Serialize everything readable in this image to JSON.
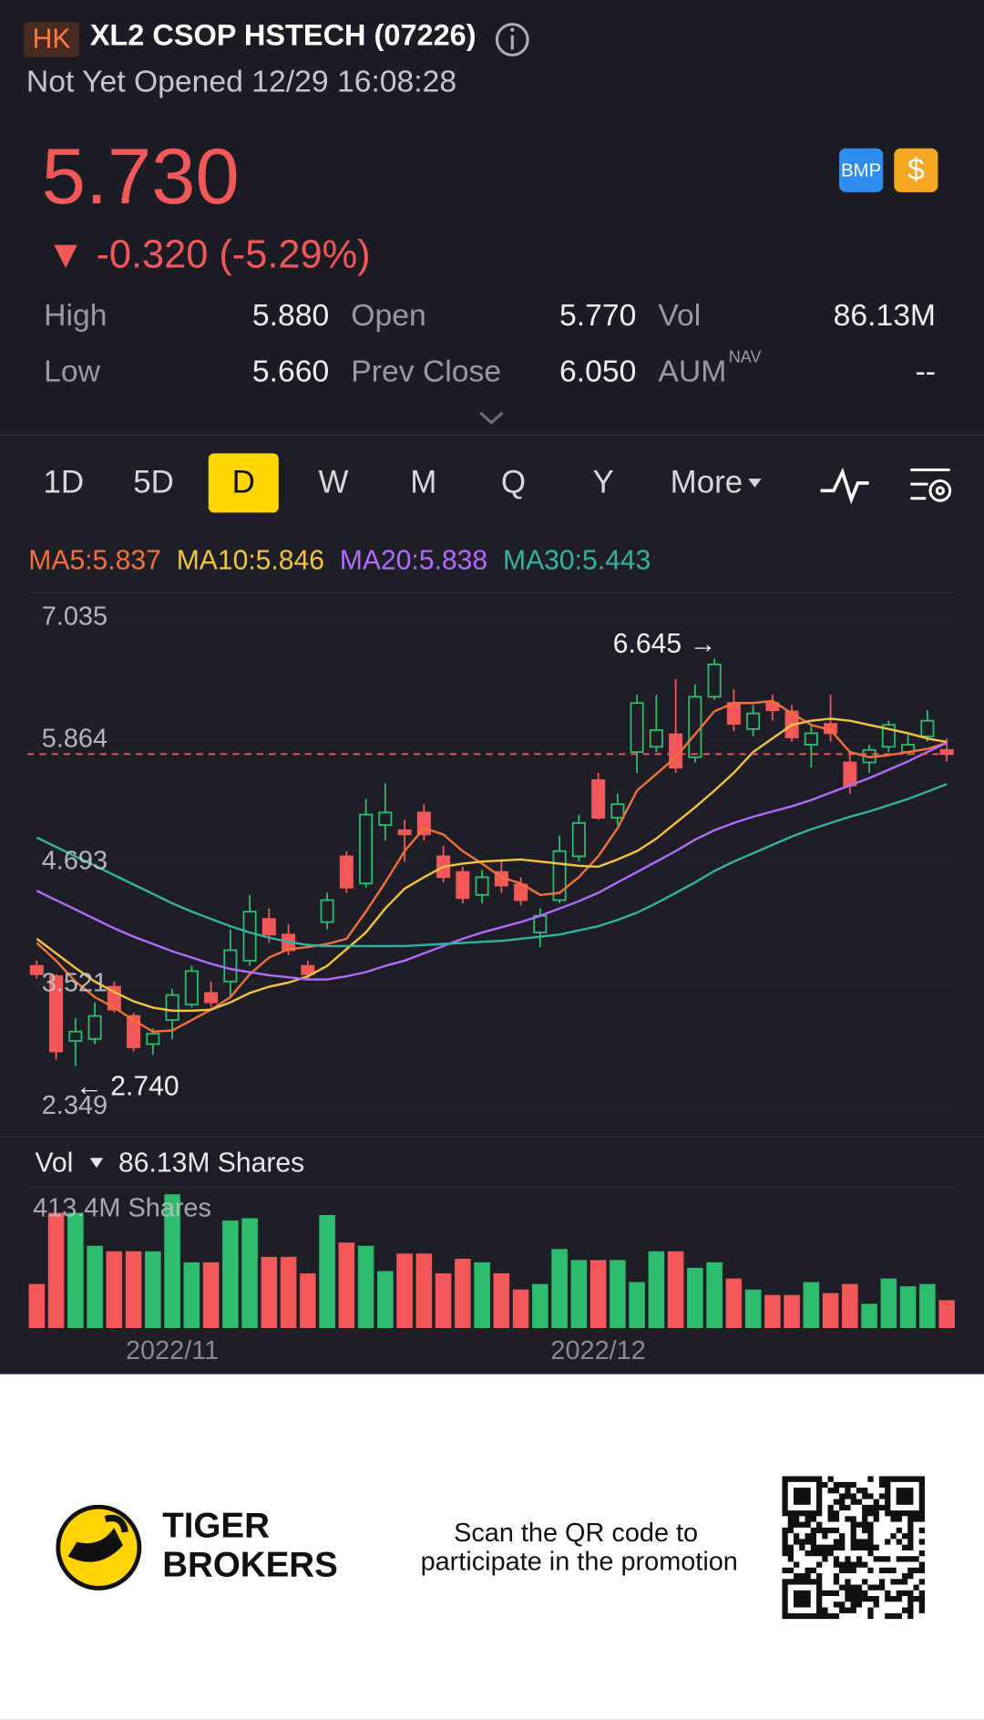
{
  "header": {
    "exchange": "HK",
    "title": "XL2 CSOP HSTECH (07226)",
    "status": "Not Yet Opened 12/29 16:08:28",
    "price": "5.730",
    "change": "▼ -0.320 (-5.29%)",
    "badges": [
      "BMP",
      "$"
    ]
  },
  "stats": [
    {
      "label": "High",
      "value": "5.880"
    },
    {
      "label": "Open",
      "value": "5.770"
    },
    {
      "label": "Vol",
      "value": "86.13M"
    },
    {
      "label": "Low",
      "value": "5.660"
    },
    {
      "label": "Prev Close",
      "value": "6.050"
    },
    {
      "label": "AUM",
      "sup": "NAV",
      "value": "--"
    }
  ],
  "tabs": [
    "1D",
    "5D",
    "D",
    "W",
    "M",
    "Q",
    "Y",
    "More"
  ],
  "selected_tab": "D",
  "chart_data": {
    "type": "candlestick",
    "categories": [
      null,
      null,
      null,
      null,
      null,
      null,
      null,
      "2022/11",
      null,
      null,
      null,
      null,
      null,
      null,
      null,
      null,
      null,
      null,
      null,
      null,
      null,
      null,
      null,
      null,
      null,
      null,
      null,
      null,
      null,
      "2022/12",
      null,
      null,
      null,
      null,
      null,
      null,
      null,
      null,
      null,
      null,
      null,
      null,
      null,
      null,
      null,
      null,
      null,
      null
    ],
    "ylim": [
      2.069,
      7.224
    ],
    "yticks": [
      7.035,
      5.864,
      4.693,
      3.521,
      2.349
    ],
    "up_color": "#2dbd6e",
    "down_color": "#f25858",
    "open": [
      3.7,
      3.6,
      2.98,
      3.0,
      3.5,
      3.22,
      2.95,
      3.18,
      3.33,
      3.44,
      3.55,
      3.75,
      4.15,
      4.0,
      3.7,
      4.12,
      4.75,
      4.49,
      5.05,
      5.0,
      5.17,
      4.75,
      4.6,
      4.38,
      4.6,
      4.48,
      4.02,
      4.33,
      4.75,
      5.48,
      5.12,
      5.75,
      5.8,
      5.92,
      5.7,
      6.28,
      6.22,
      5.97,
      6.22,
      6.14,
      5.82,
      6.02,
      5.65,
      5.65,
      5.8,
      5.75,
      5.9,
      5.77
    ],
    "high": [
      3.75,
      3.62,
      3.2,
      3.35,
      3.55,
      3.25,
      3.1,
      3.48,
      3.7,
      3.55,
      4.05,
      4.38,
      4.25,
      4.1,
      3.75,
      4.4,
      4.8,
      5.3,
      5.45,
      5.1,
      5.25,
      4.85,
      4.65,
      4.62,
      4.7,
      4.55,
      4.25,
      4.95,
      5.15,
      5.55,
      5.35,
      6.3,
      6.3,
      6.45,
      6.4,
      6.645,
      6.35,
      6.2,
      6.3,
      6.2,
      6.0,
      6.3,
      5.75,
      5.82,
      6.05,
      5.92,
      6.15,
      5.88
    ],
    "low": [
      3.58,
      2.8,
      2.74,
      2.95,
      3.25,
      2.88,
      2.85,
      3.0,
      3.3,
      3.3,
      3.4,
      3.7,
      3.92,
      3.8,
      3.58,
      4.05,
      4.4,
      4.45,
      4.9,
      4.7,
      4.9,
      4.5,
      4.3,
      4.3,
      4.4,
      4.28,
      3.88,
      4.3,
      4.7,
      5.1,
      5.05,
      5.55,
      5.75,
      5.55,
      5.65,
      6.25,
      5.95,
      5.9,
      6.05,
      5.85,
      5.6,
      5.85,
      5.35,
      5.55,
      5.75,
      5.72,
      5.85,
      5.66
    ],
    "close": [
      3.62,
      2.88,
      3.07,
      3.22,
      3.28,
      2.92,
      3.05,
      3.42,
      3.65,
      3.35,
      3.85,
      4.22,
      4.0,
      3.85,
      3.62,
      4.33,
      4.45,
      5.15,
      5.17,
      4.96,
      4.96,
      4.55,
      4.35,
      4.55,
      4.47,
      4.33,
      4.18,
      4.8,
      5.07,
      5.12,
      5.25,
      6.22,
      5.96,
      5.6,
      6.28,
      6.59,
      6.02,
      6.12,
      6.15,
      5.89,
      5.93,
      5.93,
      5.43,
      5.77,
      6.01,
      5.82,
      6.05,
      5.73
    ],
    "series": [
      {
        "name": "MA5:5.837",
        "color": "#f2703c",
        "values": [
          3.92,
          3.75,
          3.55,
          3.4,
          3.3,
          3.18,
          3.07,
          3.08,
          3.18,
          3.28,
          3.4,
          3.62,
          3.78,
          3.86,
          3.88,
          3.91,
          3.96,
          4.22,
          4.5,
          4.8,
          5.02,
          4.96,
          4.8,
          4.68,
          4.55,
          4.49,
          4.38,
          4.4,
          4.55,
          4.75,
          5.02,
          5.38,
          5.54,
          5.7,
          5.92,
          6.14,
          6.22,
          6.22,
          6.24,
          6.12,
          6.01,
          5.96,
          5.75,
          5.7,
          5.72,
          5.75,
          5.78,
          5.837
        ]
      },
      {
        "name": "MA10:5.846",
        "color": "#f5c342",
        "values": [
          3.96,
          3.82,
          3.68,
          3.55,
          3.45,
          3.36,
          3.3,
          3.27,
          3.27,
          3.28,
          3.35,
          3.44,
          3.5,
          3.54,
          3.6,
          3.7,
          3.86,
          4.02,
          4.25,
          4.44,
          4.55,
          4.65,
          4.68,
          4.7,
          4.71,
          4.72,
          4.7,
          4.68,
          4.66,
          4.65,
          4.72,
          4.8,
          4.92,
          5.07,
          5.22,
          5.38,
          5.55,
          5.75,
          5.88,
          6.01,
          6.05,
          6.07,
          6.05,
          6.01,
          5.97,
          5.93,
          5.88,
          5.846
        ]
      },
      {
        "name": "MA20:5.838",
        "color": "#b36bff",
        "values": [
          4.42,
          4.33,
          4.24,
          4.15,
          4.06,
          3.98,
          3.91,
          3.84,
          3.78,
          3.72,
          3.67,
          3.64,
          3.61,
          3.59,
          3.57,
          3.57,
          3.6,
          3.64,
          3.7,
          3.75,
          3.82,
          3.89,
          3.96,
          4.02,
          4.07,
          4.12,
          4.18,
          4.25,
          4.32,
          4.4,
          4.5,
          4.6,
          4.7,
          4.8,
          4.91,
          5.0,
          5.07,
          5.13,
          5.18,
          5.23,
          5.29,
          5.36,
          5.43,
          5.5,
          5.58,
          5.66,
          5.75,
          5.838
        ]
      },
      {
        "name": "MA30:5.443",
        "color": "#35b3a0",
        "values": [
          4.93,
          4.84,
          4.75,
          4.66,
          4.57,
          4.48,
          4.39,
          4.3,
          4.22,
          4.15,
          4.08,
          4.02,
          3.97,
          3.93,
          3.9,
          3.89,
          3.89,
          3.89,
          3.89,
          3.89,
          3.9,
          3.91,
          3.92,
          3.93,
          3.94,
          3.96,
          3.98,
          4.0,
          4.04,
          4.08,
          4.14,
          4.21,
          4.3,
          4.4,
          4.5,
          4.61,
          4.7,
          4.78,
          4.86,
          4.94,
          5.01,
          5.07,
          5.13,
          5.18,
          5.24,
          5.3,
          5.37,
          5.443
        ]
      }
    ],
    "high_label": "6.645 →",
    "low_label": "← 2.740",
    "volume": {
      "label": "Vol",
      "value_label": "86.13M Shares",
      "max_label": "413.4M Shares",
      "ylim": [
        0,
        413.4
      ],
      "values": [
        136,
        356,
        356,
        254,
        237,
        237,
        237,
        413,
        203,
        203,
        332,
        339,
        220,
        220,
        169,
        349,
        264,
        254,
        176,
        230,
        230,
        169,
        214,
        203,
        169,
        119,
        136,
        244,
        210,
        210,
        210,
        142,
        237,
        237,
        186,
        203,
        153,
        119,
        102,
        102,
        142,
        108,
        136,
        75,
        153,
        129,
        136,
        86.13
      ]
    }
  },
  "footer": {
    "brand": [
      "TIGER",
      "BROKERS"
    ],
    "promo": [
      "Scan the QR code to",
      "participate in the promotion"
    ]
  }
}
